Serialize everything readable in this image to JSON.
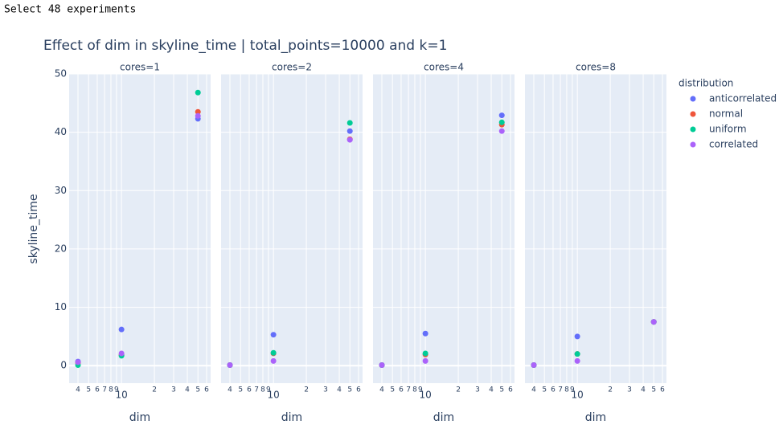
{
  "header": "Select 48 experiments",
  "chart_data": {
    "type": "scatter",
    "title": "Effect of dim in skyline_time | total_points=10000 and k=1",
    "x_label": "dim",
    "y_label": "skyline_time",
    "legend_title": "distribution",
    "legend": "right",
    "log_x": true,
    "grid": true,
    "x": [
      4,
      10,
      50
    ],
    "xlim": [
      3.32,
      65.3
    ],
    "xticks": [
      4,
      5,
      6,
      7,
      8,
      9,
      10,
      {
        "value": 20,
        "label": "2"
      },
      {
        "value": 30,
        "label": "3"
      },
      {
        "value": 40,
        "label": "4"
      },
      {
        "value": 50,
        "label": "5"
      },
      {
        "value": 60,
        "label": "6"
      }
    ],
    "ylim": [
      -3,
      50
    ],
    "yticks": [
      0,
      10,
      20,
      30,
      40,
      50
    ],
    "series": [
      {
        "name": "anticorrelated",
        "color": "#636efa"
      },
      {
        "name": "normal",
        "color": "#EF553B"
      },
      {
        "name": "uniform",
        "color": "#00cc96"
      },
      {
        "name": "correlated",
        "color": "#ab63fa"
      }
    ],
    "facets": [
      {
        "title": "cores=1",
        "values": [
          [
            0.7,
            6.2,
            42.3
          ],
          [
            0.5,
            1.8,
            43.5
          ],
          [
            0.1,
            1.7,
            46.8
          ],
          [
            0.6,
            2.1,
            42.8
          ]
        ]
      },
      {
        "title": "cores=2",
        "values": [
          [
            0.1,
            5.3,
            40.2
          ],
          [
            0.1,
            2.1,
            38.8
          ],
          [
            0.1,
            2.2,
            41.6
          ],
          [
            0.1,
            0.8,
            38.7
          ]
        ]
      },
      {
        "title": "cores=4",
        "values": [
          [
            0.1,
            5.5,
            42.9
          ],
          [
            0.1,
            1.9,
            41.3
          ],
          [
            0.1,
            2.1,
            41.7
          ],
          [
            0.1,
            0.8,
            40.2
          ]
        ]
      },
      {
        "title": "cores=8",
        "values": [
          [
            0.1,
            5.0,
            7.5
          ],
          [
            0.1,
            2.0,
            7.5
          ],
          [
            0.1,
            2.0,
            7.5
          ],
          [
            0.1,
            0.8,
            7.5
          ]
        ]
      }
    ]
  }
}
